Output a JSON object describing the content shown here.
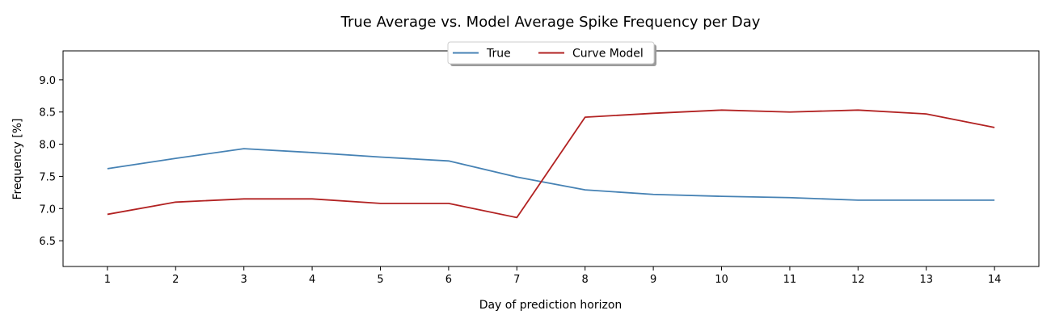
{
  "chart_data": {
    "type": "line",
    "title": "True Average vs. Model Average Spike Frequency per Day",
    "xlabel": "Day of prediction horizon",
    "ylabel": "Frequency [%]",
    "x": [
      1,
      2,
      3,
      4,
      5,
      6,
      7,
      8,
      9,
      10,
      11,
      12,
      13,
      14
    ],
    "x_tick_labels": [
      "1",
      "2",
      "3",
      "4",
      "5",
      "6",
      "7",
      "8",
      "9",
      "10",
      "11",
      "12",
      "13",
      "14"
    ],
    "xlim": [
      0.35,
      14.65
    ],
    "ylim": [
      6.1,
      9.45
    ],
    "y_ticks": [
      6.5,
      7.0,
      7.5,
      8.0,
      8.5,
      9.0
    ],
    "y_tick_labels": [
      "6.5",
      "7.0",
      "7.5",
      "8.0",
      "8.5",
      "9.0"
    ],
    "grid": false,
    "legend_position": "top-center",
    "series": [
      {
        "name": "True",
        "color": "#4682b4",
        "values": [
          7.62,
          7.78,
          7.93,
          7.87,
          7.8,
          7.74,
          7.49,
          7.29,
          7.22,
          7.19,
          7.17,
          7.13,
          7.13,
          7.13
        ]
      },
      {
        "name": "Curve Model",
        "color": "#b22222",
        "values": [
          6.91,
          7.1,
          7.15,
          7.15,
          7.08,
          7.08,
          6.86,
          8.42,
          8.48,
          8.53,
          8.5,
          8.53,
          8.47,
          8.26
        ]
      }
    ]
  }
}
